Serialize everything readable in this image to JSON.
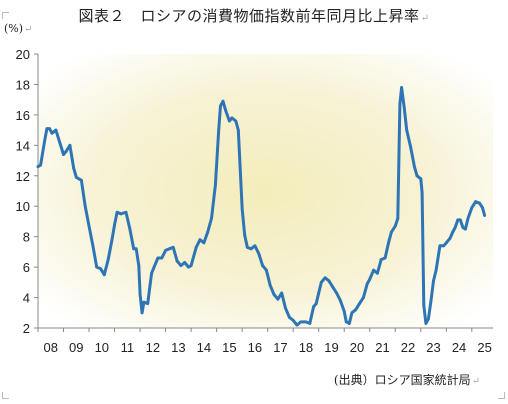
{
  "title": "図表２　ロシアの消費物価指数前年同月比上昇率",
  "unit_label": "(%)",
  "source_note": "(出典）ロシア国家統計局",
  "colors": {
    "line": "#2e75b6",
    "plot_bg_edge": "#ffffff",
    "plot_bg_center": "#f3edbb",
    "axis": "#888888",
    "grid": "#bfbfbf"
  },
  "chart_data": {
    "type": "line",
    "title": "図表２　ロシアの消費物価指数前年同月比上昇率",
    "ylabel": "(%)",
    "xlabel": "",
    "ylim": [
      2,
      20
    ],
    "yticks": [
      2,
      4,
      6,
      8,
      10,
      12,
      14,
      16,
      18,
      20
    ],
    "xlim": [
      2008.0,
      2025.83
    ],
    "xtick_labels": [
      "08",
      "09",
      "10",
      "11",
      "12",
      "13",
      "14",
      "15",
      "16",
      "17",
      "18",
      "19",
      "20",
      "21",
      "22",
      "23",
      "24",
      "25"
    ],
    "grid": false,
    "legend": "none",
    "series": [
      {
        "values": [
          [
            2008.0,
            12.6
          ],
          [
            2008.1,
            12.7
          ],
          [
            2008.25,
            14.2
          ],
          [
            2008.35,
            15.1
          ],
          [
            2008.45,
            15.1
          ],
          [
            2008.55,
            14.8
          ],
          [
            2008.7,
            15.0
          ],
          [
            2008.85,
            14.2
          ],
          [
            2009.0,
            13.4
          ],
          [
            2009.1,
            13.6
          ],
          [
            2009.25,
            14.0
          ],
          [
            2009.4,
            12.5
          ],
          [
            2009.5,
            11.9
          ],
          [
            2009.7,
            11.7
          ],
          [
            2009.85,
            10.0
          ],
          [
            2010.0,
            8.7
          ],
          [
            2010.15,
            7.4
          ],
          [
            2010.3,
            6.0
          ],
          [
            2010.45,
            5.9
          ],
          [
            2010.6,
            5.5
          ],
          [
            2010.75,
            6.5
          ],
          [
            2010.9,
            7.8
          ],
          [
            2011.0,
            8.8
          ],
          [
            2011.1,
            9.6
          ],
          [
            2011.25,
            9.5
          ],
          [
            2011.45,
            9.6
          ],
          [
            2011.6,
            8.5
          ],
          [
            2011.75,
            7.2
          ],
          [
            2011.85,
            7.2
          ],
          [
            2011.95,
            6.1
          ],
          [
            2012.0,
            4.2
          ],
          [
            2012.08,
            3.0
          ],
          [
            2012.15,
            3.7
          ],
          [
            2012.3,
            3.6
          ],
          [
            2012.45,
            5.6
          ],
          [
            2012.55,
            6.0
          ],
          [
            2012.7,
            6.6
          ],
          [
            2012.85,
            6.6
          ],
          [
            2013.0,
            7.1
          ],
          [
            2013.15,
            7.2
          ],
          [
            2013.3,
            7.3
          ],
          [
            2013.45,
            6.4
          ],
          [
            2013.6,
            6.1
          ],
          [
            2013.75,
            6.3
          ],
          [
            2013.9,
            6.0
          ],
          [
            2014.0,
            6.1
          ],
          [
            2014.2,
            7.3
          ],
          [
            2014.35,
            7.8
          ],
          [
            2014.5,
            7.6
          ],
          [
            2014.65,
            8.3
          ],
          [
            2014.8,
            9.2
          ],
          [
            2014.95,
            11.4
          ],
          [
            2015.08,
            15.0
          ],
          [
            2015.15,
            16.6
          ],
          [
            2015.25,
            16.9
          ],
          [
            2015.35,
            16.3
          ],
          [
            2015.5,
            15.6
          ],
          [
            2015.6,
            15.8
          ],
          [
            2015.75,
            15.6
          ],
          [
            2015.85,
            15.0
          ],
          [
            2016.0,
            9.8
          ],
          [
            2016.1,
            8.1
          ],
          [
            2016.2,
            7.3
          ],
          [
            2016.35,
            7.2
          ],
          [
            2016.5,
            7.4
          ],
          [
            2016.65,
            6.9
          ],
          [
            2016.8,
            6.1
          ],
          [
            2016.95,
            5.8
          ],
          [
            2017.1,
            4.8
          ],
          [
            2017.25,
            4.2
          ],
          [
            2017.4,
            3.9
          ],
          [
            2017.55,
            4.3
          ],
          [
            2017.7,
            3.3
          ],
          [
            2017.85,
            2.7
          ],
          [
            2018.0,
            2.5
          ],
          [
            2018.15,
            2.2
          ],
          [
            2018.3,
            2.4
          ],
          [
            2018.5,
            2.4
          ],
          [
            2018.65,
            2.3
          ],
          [
            2018.8,
            3.4
          ],
          [
            2018.9,
            3.6
          ],
          [
            2019.0,
            4.3
          ],
          [
            2019.1,
            5.0
          ],
          [
            2019.25,
            5.3
          ],
          [
            2019.4,
            5.1
          ],
          [
            2019.55,
            4.7
          ],
          [
            2019.7,
            4.3
          ],
          [
            2019.85,
            3.8
          ],
          [
            2020.0,
            3.1
          ],
          [
            2020.08,
            2.4
          ],
          [
            2020.2,
            2.3
          ],
          [
            2020.3,
            3.0
          ],
          [
            2020.45,
            3.2
          ],
          [
            2020.6,
            3.6
          ],
          [
            2020.75,
            4.0
          ],
          [
            2020.9,
            4.9
          ],
          [
            2021.0,
            5.2
          ],
          [
            2021.15,
            5.8
          ],
          [
            2021.3,
            5.6
          ],
          [
            2021.45,
            6.5
          ],
          [
            2021.6,
            6.6
          ],
          [
            2021.75,
            7.7
          ],
          [
            2021.85,
            8.3
          ],
          [
            2022.0,
            8.7
          ],
          [
            2022.1,
            9.2
          ],
          [
            2022.18,
            16.7
          ],
          [
            2022.25,
            17.8
          ],
          [
            2022.35,
            16.5
          ],
          [
            2022.45,
            15.0
          ],
          [
            2022.6,
            13.9
          ],
          [
            2022.75,
            12.6
          ],
          [
            2022.85,
            12.0
          ],
          [
            2023.0,
            11.8
          ],
          [
            2023.05,
            10.9
          ],
          [
            2023.12,
            3.5
          ],
          [
            2023.2,
            2.3
          ],
          [
            2023.3,
            2.6
          ],
          [
            2023.4,
            3.8
          ],
          [
            2023.5,
            5.1
          ],
          [
            2023.6,
            5.8
          ],
          [
            2023.75,
            7.4
          ],
          [
            2023.9,
            7.4
          ],
          [
            2024.0,
            7.6
          ],
          [
            2024.15,
            7.9
          ],
          [
            2024.25,
            8.3
          ],
          [
            2024.35,
            8.6
          ],
          [
            2024.45,
            9.1
          ],
          [
            2024.55,
            9.1
          ],
          [
            2024.65,
            8.6
          ],
          [
            2024.75,
            8.5
          ],
          [
            2024.85,
            9.2
          ],
          [
            2025.0,
            9.9
          ],
          [
            2025.15,
            10.3
          ],
          [
            2025.3,
            10.2
          ],
          [
            2025.42,
            9.9
          ],
          [
            2025.5,
            9.4
          ]
        ]
      }
    ]
  }
}
